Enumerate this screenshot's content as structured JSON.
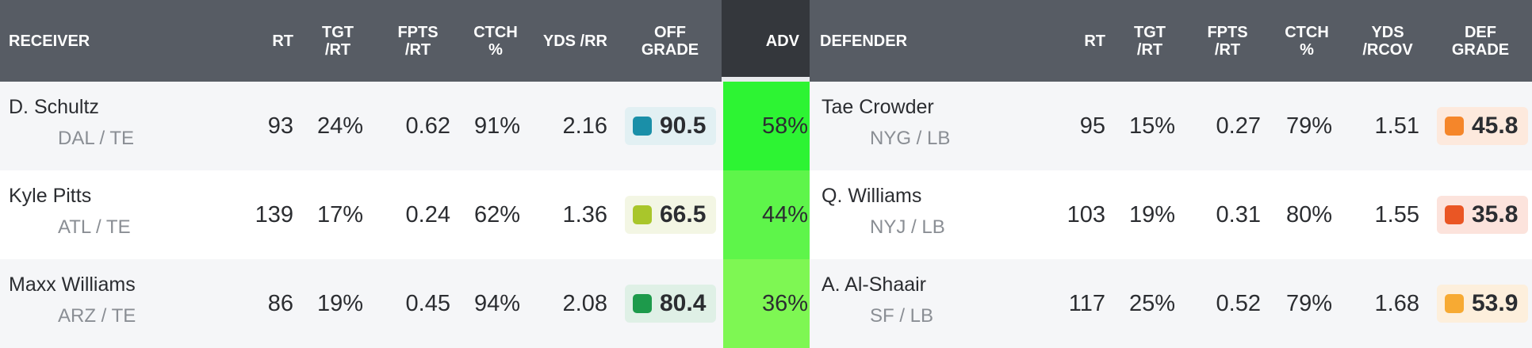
{
  "header": {
    "receiver": "RECEIVER",
    "rt": "RT",
    "tgt_rt": "TGT\n/RT",
    "fpts_rt": "FPTS\n/RT",
    "ctch": "CTCH\n%",
    "yds_rr": "YDS /RR",
    "off_grade": "OFF\nGRADE",
    "adv": "ADV",
    "defender": "DEFENDER",
    "d_rt": "RT",
    "d_tgt_rt": "TGT\n/RT",
    "d_fpts_rt": "FPTS\n/RT",
    "d_ctch": "CTCH\n%",
    "d_yds_rcov": "YDS\n/RCOV",
    "def_grade": "DEF\nGRADE"
  },
  "rows": [
    {
      "receiver": {
        "name": "D. Schultz",
        "team": "DAL / TE",
        "rt": "93",
        "tgt_rt": "24%",
        "fpts_rt": "0.62",
        "ctch": "91%",
        "yds_rr": "2.16",
        "grade": "90.5",
        "grade_color": "#1a8fa8",
        "grade_bg": "#e2f0f3"
      },
      "adv": "58%",
      "adv_color": "#2df433",
      "defender": {
        "name": "Tae Crowder",
        "team": "NYG / LB",
        "rt": "95",
        "tgt_rt": "15%",
        "fpts_rt": "0.27",
        "ctch": "79%",
        "yds_rcov": "1.51",
        "grade": "45.8",
        "grade_color": "#f5862a",
        "grade_bg": "#fde9dd"
      }
    },
    {
      "receiver": {
        "name": "Kyle Pitts",
        "team": "ATL / TE",
        "rt": "139",
        "tgt_rt": "17%",
        "fpts_rt": "0.24",
        "ctch": "62%",
        "yds_rr": "1.36",
        "grade": "66.5",
        "grade_color": "#a9c62b",
        "grade_bg": "#f3f6e4"
      },
      "adv": "44%",
      "adv_color": "#5ef54a",
      "defender": {
        "name": "Q. Williams",
        "team": "NYJ / LB",
        "rt": "103",
        "tgt_rt": "19%",
        "fpts_rt": "0.31",
        "ctch": "80%",
        "yds_rcov": "1.55",
        "grade": "35.8",
        "grade_color": "#ea5624",
        "grade_bg": "#fce3dc"
      }
    },
    {
      "receiver": {
        "name": "Maxx Williams",
        "team": "ARZ / TE",
        "rt": "86",
        "tgt_rt": "19%",
        "fpts_rt": "0.45",
        "ctch": "94%",
        "yds_rr": "2.08",
        "grade": "80.4",
        "grade_color": "#1d9a4b",
        "grade_bg": "#dff0e6"
      },
      "adv": "36%",
      "adv_color": "#7ef753",
      "defender": {
        "name": "A. Al-Shaair",
        "team": "SF / LB",
        "rt": "117",
        "tgt_rt": "25%",
        "fpts_rt": "0.52",
        "ctch": "79%",
        "yds_rcov": "1.68",
        "grade": "53.9",
        "grade_color": "#f7aa33",
        "grade_bg": "#fdefdc"
      }
    }
  ]
}
